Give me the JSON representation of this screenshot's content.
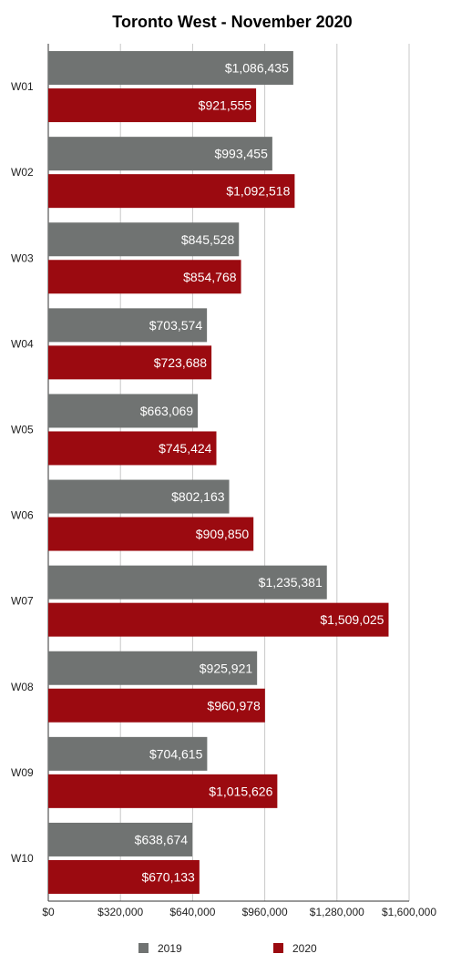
{
  "chart_data": {
    "type": "bar",
    "orientation": "horizontal",
    "title": "Toronto West - November 2020",
    "categories": [
      "W01",
      "W02",
      "W03",
      "W04",
      "W05",
      "W06",
      "W07",
      "W08",
      "W09",
      "W10"
    ],
    "series": [
      {
        "name": "2019",
        "color": "#707372",
        "values": [
          1086435,
          993455,
          845528,
          703574,
          663069,
          802163,
          1235381,
          925921,
          704615,
          638674
        ],
        "labels": [
          "$1,086,435",
          "$993,455",
          "$845,528",
          "$703,574",
          "$663,069",
          "$802,163",
          "$1,235,381",
          "$925,921",
          "$704,615",
          "$638,674"
        ]
      },
      {
        "name": "2020",
        "color": "#9b0a10",
        "values": [
          921555,
          1092518,
          854768,
          723688,
          745424,
          909850,
          1509025,
          960978,
          1015626,
          670133
        ],
        "labels": [
          "$921,555",
          "$1,092,518",
          "$854,768",
          "$723,688",
          "$745,424",
          "$909,850",
          "$1,509,025",
          "$960,978",
          "$1,015,626",
          "$670,133"
        ]
      }
    ],
    "xlim": [
      0,
      1600000
    ],
    "xticks": [
      0,
      320000,
      640000,
      960000,
      1280000,
      1600000
    ],
    "xtick_labels": [
      "$0",
      "$320,000",
      "$640,000",
      "$960,000",
      "$1,280,000",
      "$1,600,000"
    ],
    "grid": true,
    "legend_position": "bottom"
  }
}
